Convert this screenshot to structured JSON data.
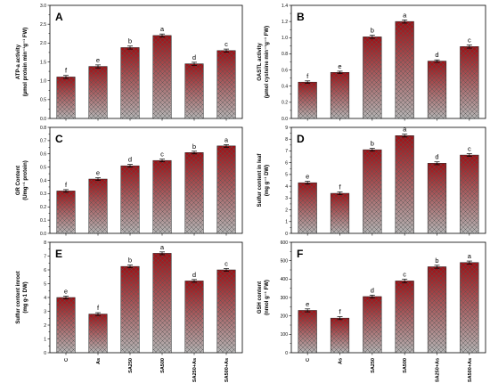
{
  "categories": [
    "C",
    "As",
    "SA250",
    "SA500",
    "SA250+As",
    "SA500+As"
  ],
  "colors": {
    "bar_top": "#9e0f14",
    "bar_bottom": "#b4b4b4",
    "hatch": "#555555",
    "axis": "#000000"
  },
  "chart_data": [
    {
      "type": "bar",
      "panel": "A",
      "ylabel": "ATP-a activity\n(µmol protein min⁻¹g⁻¹ FW)",
      "ylim": [
        0,
        3.0
      ],
      "yticks": [
        "0.0",
        "0.5",
        "1.0",
        "1.5",
        "2.0",
        "2.5",
        "3.0"
      ],
      "categories": [
        "C",
        "As",
        "SA250",
        "SA500",
        "SA250+As",
        "SA500+As"
      ],
      "values": [
        1.1,
        1.38,
        1.88,
        2.2,
        1.45,
        1.8
      ],
      "errors": [
        0.04,
        0.04,
        0.04,
        0.04,
        0.04,
        0.04
      ],
      "letters": [
        "f",
        "e",
        "b",
        "a",
        "d",
        "c"
      ]
    },
    {
      "type": "bar",
      "panel": "B",
      "ylabel": "OASTL activity\n(µmol cysteine min⁻¹g⁻¹ FW)",
      "ylim": [
        0,
        1.4
      ],
      "yticks": [
        "0.0",
        "0.2",
        "0.4",
        "0.6",
        "0.8",
        "1.0",
        "1.2",
        "1.4"
      ],
      "categories": [
        "C",
        "As",
        "SA250",
        "SA500",
        "SA250+As",
        "SA500+As"
      ],
      "values": [
        0.45,
        0.57,
        1.01,
        1.2,
        0.71,
        0.89
      ],
      "errors": [
        0.015,
        0.015,
        0.02,
        0.02,
        0.015,
        0.02
      ],
      "letters": [
        "f",
        "e",
        "b",
        "a",
        "d",
        "c"
      ]
    },
    {
      "type": "bar",
      "panel": "C",
      "ylabel": "GR Content\n(Umg⁻¹ protein)",
      "ylim": [
        0,
        0.8
      ],
      "yticks": [
        "0.0",
        "0.1",
        "0.2",
        "0.3",
        "0.4",
        "0.5",
        "0.6",
        "0.7",
        "0.8"
      ],
      "categories": [
        "C",
        "As",
        "SA250",
        "SA500",
        "SA250+As",
        "SA500+As"
      ],
      "values": [
        0.32,
        0.41,
        0.51,
        0.55,
        0.61,
        0.66
      ],
      "errors": [
        0.01,
        0.01,
        0.01,
        0.01,
        0.01,
        0.01
      ],
      "letters": [
        "f",
        "e",
        "d",
        "c",
        "b",
        "a"
      ]
    },
    {
      "type": "bar",
      "panel": "D",
      "ylabel": "Sulfur content in leaf\n(mg g⁻¹ DW)",
      "ylim": [
        0,
        9
      ],
      "yticks": [
        "0",
        "1",
        "2",
        "3",
        "4",
        "5",
        "6",
        "7",
        "8",
        "9"
      ],
      "categories": [
        "C",
        "As",
        "SA250",
        "SA500",
        "SA250+As",
        "SA500+As"
      ],
      "values": [
        4.3,
        3.4,
        7.1,
        8.3,
        5.95,
        6.65
      ],
      "errors": [
        0.12,
        0.12,
        0.12,
        0.12,
        0.12,
        0.12
      ],
      "letters": [
        "e",
        "f",
        "b",
        "a",
        "d",
        "c"
      ]
    },
    {
      "type": "bar",
      "panel": "E",
      "ylabel": "Sulfur content inroot\n(mg g-1 DW)",
      "ylim": [
        0,
        8
      ],
      "yticks": [
        "0",
        "1",
        "2",
        "3",
        "4",
        "5",
        "6",
        "7",
        "8"
      ],
      "categories": [
        "C",
        "As",
        "SA250",
        "SA500",
        "SA250+As",
        "SA500+As"
      ],
      "values": [
        4.0,
        2.8,
        6.25,
        7.2,
        5.2,
        6.0
      ],
      "errors": [
        0.1,
        0.1,
        0.1,
        0.1,
        0.1,
        0.1
      ],
      "letters": [
        "e",
        "f",
        "b",
        "a",
        "d",
        "c"
      ]
    },
    {
      "type": "bar",
      "panel": "F",
      "ylabel": "GSH content\n(nmol g⁻¹ FW)",
      "ylim": [
        0,
        600
      ],
      "yticks": [
        "0",
        "100",
        "200",
        "300",
        "400",
        "500",
        "600"
      ],
      "categories": [
        "C",
        "As",
        "SA250",
        "SA500",
        "SA250+As",
        "SA500+As"
      ],
      "values": [
        230,
        188,
        305,
        390,
        467,
        490
      ],
      "errors": [
        8,
        8,
        8,
        10,
        8,
        8
      ],
      "letters": [
        "e",
        "f",
        "d",
        "c",
        "b",
        "a"
      ]
    }
  ]
}
